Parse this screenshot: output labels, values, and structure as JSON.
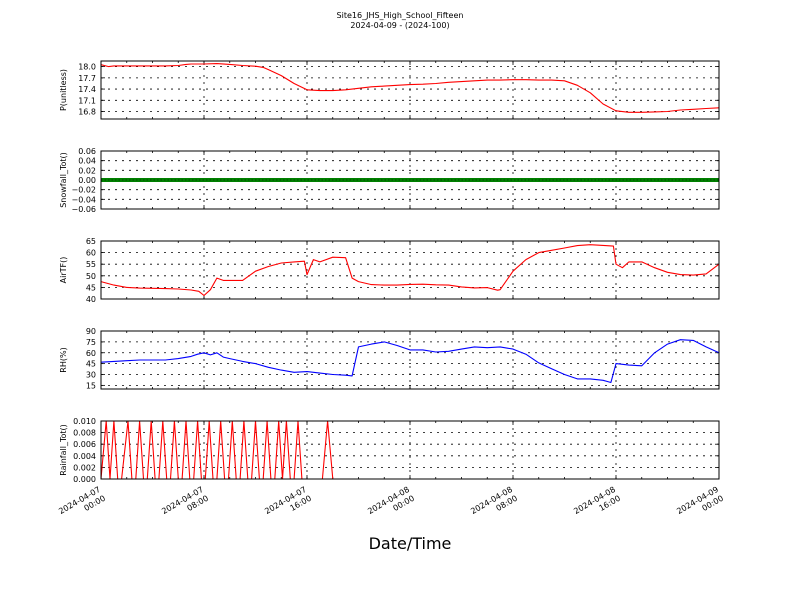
{
  "chart_data": {
    "type": "line",
    "title": "Site16_JHS_High_School_Fifteen",
    "subtitle": "2024-04-09 - (2024-100)",
    "xlabel": "Date/Time",
    "x_tick_labels": [
      [
        "2024-04-07",
        "00:00"
      ],
      [
        "2024-04-07",
        "08:00"
      ],
      [
        "2024-04-07",
        "16:00"
      ],
      [
        "2024-04-08",
        "00:00"
      ],
      [
        "2024-04-08",
        "08:00"
      ],
      [
        "2024-04-08",
        "16:00"
      ],
      [
        "2024-04-09",
        "00:00"
      ]
    ],
    "x_range_hours": [
      0,
      48
    ],
    "grid": true,
    "panels": [
      {
        "ylabel": "P(unitless)",
        "color": "#ff0000",
        "ylim": [
          16.6,
          18.15
        ],
        "yticks": [
          "18.0",
          "17.7",
          "17.4",
          "17.1",
          "16.8"
        ],
        "series": {
          "x": [
            0,
            0.6,
            1,
            2,
            3,
            4,
            5,
            6,
            6.6,
            7,
            8,
            9,
            10,
            11,
            12,
            12.6,
            13,
            14,
            15,
            16,
            17,
            18,
            19,
            20,
            21,
            22,
            23,
            24,
            25,
            26,
            27,
            28,
            29,
            30,
            31,
            32,
            33,
            34,
            35,
            36,
            37,
            38,
            39,
            40,
            41,
            42,
            43,
            44,
            45,
            46,
            47,
            48
          ],
          "y": [
            18.05,
            18.0,
            18.02,
            18.02,
            18.02,
            18.02,
            18.02,
            18.03,
            18.06,
            18.07,
            18.07,
            18.08,
            18.06,
            18.03,
            18.01,
            17.98,
            17.92,
            17.76,
            17.55,
            17.38,
            17.36,
            17.36,
            17.38,
            17.42,
            17.46,
            17.48,
            17.5,
            17.52,
            17.53,
            17.55,
            17.58,
            17.6,
            17.62,
            17.64,
            17.64,
            17.65,
            17.65,
            17.64,
            17.64,
            17.62,
            17.5,
            17.3,
            17.0,
            16.82,
            16.78,
            16.78,
            16.79,
            16.8,
            16.84,
            16.86,
            16.88,
            16.9
          ]
        }
      },
      {
        "ylabel": "Snowfall_Tot()",
        "color": "#008000",
        "ylim": [
          -0.06,
          0.06
        ],
        "yticks": [
          "0.06",
          "0.04",
          "0.02",
          "0.00",
          "−0.02",
          "−0.04",
          "−0.06"
        ],
        "series": {
          "x": [
            0,
            48
          ],
          "y": [
            0,
            0
          ]
        }
      },
      {
        "ylabel": "AirTF()",
        "color": "#ff0000",
        "ylim": [
          40,
          65
        ],
        "yticks": [
          "65",
          "60",
          "55",
          "50",
          "45",
          "40"
        ],
        "series": {
          "x": [
            0,
            1,
            2,
            3,
            4,
            5,
            6,
            7,
            7.6,
            8,
            8.5,
            9,
            9.5,
            10,
            11,
            12,
            13,
            14,
            15,
            15.8,
            16,
            16.5,
            17,
            18,
            19,
            19.5,
            20,
            21,
            22,
            23,
            24,
            25,
            26,
            27,
            28,
            29,
            30,
            30.8,
            31,
            32,
            33,
            34,
            35,
            36,
            37,
            38,
            39,
            39.8,
            40,
            40.5,
            41,
            42,
            43,
            44,
            45,
            46,
            47,
            48
          ],
          "y": [
            47.5,
            46,
            45,
            44.7,
            44.6,
            44.5,
            44.3,
            43.9,
            43.3,
            41.5,
            44,
            49,
            48,
            48,
            48,
            52,
            54,
            55.5,
            56,
            56.3,
            50.5,
            57,
            56,
            58,
            57.8,
            49,
            47.5,
            46.2,
            46,
            46,
            46.3,
            46.4,
            46.1,
            46,
            45.2,
            44.8,
            44.9,
            43.8,
            44,
            52,
            57,
            60,
            61,
            62,
            63,
            63.4,
            63.1,
            62.8,
            55,
            53.5,
            56,
            56,
            53.5,
            51.5,
            50.5,
            50.3,
            50.8,
            55
          ]
        }
      },
      {
        "ylabel": "RH(%)",
        "color": "#0000ff",
        "ylim": [
          10,
          90
        ],
        "yticks": [
          "90",
          "75",
          "60",
          "45",
          "30",
          "15"
        ],
        "series": {
          "x": [
            0,
            1,
            2,
            3,
            4,
            5,
            6,
            7,
            7.5,
            8,
            8.5,
            9,
            9.5,
            10,
            11,
            12,
            13,
            14,
            15,
            16,
            17,
            18,
            19,
            19.5,
            20,
            21,
            22,
            23,
            24,
            25,
            26,
            27,
            28,
            29,
            30,
            31,
            32,
            33,
            34,
            35,
            36,
            37,
            38,
            39,
            39.6,
            40,
            41,
            42,
            43,
            44,
            45,
            46,
            47,
            48
          ],
          "y": [
            47,
            48,
            49,
            50,
            50,
            50,
            52,
            55,
            58,
            60,
            57,
            60,
            54,
            52,
            48,
            45,
            40,
            36,
            33,
            34,
            32,
            30,
            29,
            28,
            68,
            72,
            75,
            70,
            64,
            64,
            61,
            62,
            65,
            68,
            67,
            68,
            65,
            58,
            46,
            38,
            30,
            24,
            24,
            22,
            19,
            45,
            43,
            42,
            60,
            72,
            78,
            77,
            68,
            60
          ]
        }
      },
      {
        "ylabel": "Rainfall_Tot()",
        "color": "#ff0000",
        "ylim": [
          0,
          0.01
        ],
        "yticks": [
          "0.010",
          "0.008",
          "0.006",
          "0.004",
          "0.002",
          "0.000"
        ],
        "series": {
          "x": [
            0,
            0.4,
            0.7,
            1.0,
            1.3,
            1.6,
            2.1,
            2.4,
            2.7,
            3.0,
            3.3,
            3.6,
            3.9,
            4.2,
            4.5,
            4.8,
            5.1,
            5.4,
            5.7,
            6.0,
            6.3,
            6.6,
            6.9,
            7.2,
            7.5,
            7.8,
            8.1,
            8.4,
            8.7,
            9.0,
            9.3,
            9.6,
            9.9,
            10.2,
            10.5,
            10.8,
            11.1,
            11.4,
            11.7,
            12.0,
            12.3,
            12.6,
            12.9,
            13.2,
            13.5,
            13.8,
            14.1,
            14.4,
            14.7,
            15.0,
            15.3,
            15.6,
            16.0,
            16.4,
            16.8,
            17.2,
            17.6,
            18.0,
            48
          ],
          "y": [
            0,
            0.01,
            0,
            0.01,
            0,
            0,
            0.01,
            0,
            0,
            0.01,
            0,
            0,
            0.01,
            0,
            0,
            0.01,
            0,
            0,
            0.01,
            0,
            0,
            0.01,
            0,
            0,
            0.01,
            0,
            0,
            0.01,
            0,
            0,
            0.01,
            0,
            0,
            0.01,
            0,
            0,
            0.01,
            0,
            0,
            0.01,
            0,
            0,
            0.01,
            0,
            0,
            0.01,
            0,
            0.01,
            0,
            0,
            0.01,
            0,
            0,
            0,
            0,
            0,
            0.01,
            0,
            0
          ]
        }
      }
    ]
  }
}
